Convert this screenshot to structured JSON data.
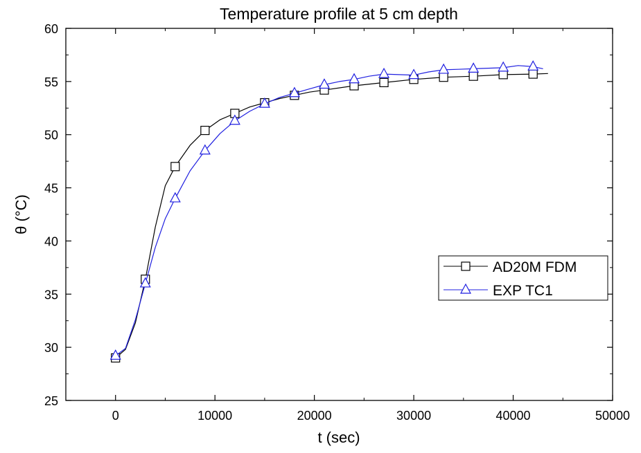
{
  "chart_data": {
    "type": "line",
    "title": "Temperature profile at 5 cm depth",
    "xlabel": "t (sec)",
    "ylabel": "θ (°C)",
    "xlim": [
      -5000,
      50000
    ],
    "ylim": [
      25,
      60
    ],
    "xticks": [
      0,
      10000,
      20000,
      30000,
      40000,
      50000
    ],
    "xtick_labels": [
      "0",
      "10000",
      "20000",
      "30000",
      "40000",
      "50000"
    ],
    "yticks": [
      25,
      30,
      35,
      40,
      45,
      50,
      55,
      60
    ],
    "ytick_labels": [
      "25",
      "30",
      "35",
      "40",
      "45",
      "50",
      "55",
      "60"
    ],
    "grid": false,
    "legend_position": "right",
    "series": [
      {
        "name": "AD20M FDM",
        "color": "#000000",
        "marker": "square",
        "x": [
          0,
          3000,
          6000,
          9000,
          12000,
          15000,
          18000,
          21000,
          24000,
          27000,
          30000,
          33000,
          36000,
          39000,
          42000
        ],
        "y": [
          29.0,
          36.4,
          47.0,
          50.4,
          52.0,
          53.0,
          53.7,
          54.2,
          54.6,
          54.9,
          55.2,
          55.4,
          55.5,
          55.65,
          55.7
        ],
        "line_x": [
          0,
          1000,
          2000,
          3000,
          4000,
          5000,
          6000,
          7500,
          9000,
          10500,
          12000,
          13500,
          15000,
          16500,
          18000,
          19500,
          21000,
          24000,
          27000,
          30000,
          33000,
          36000,
          39000,
          42000,
          43500
        ],
        "line_y": [
          29.0,
          29.8,
          32.3,
          36.4,
          41.3,
          45.2,
          47.0,
          49.0,
          50.4,
          51.4,
          52.0,
          52.6,
          53.0,
          53.4,
          53.7,
          54.0,
          54.2,
          54.6,
          54.9,
          55.2,
          55.4,
          55.5,
          55.65,
          55.7,
          55.75
        ]
      },
      {
        "name": "EXP TC1",
        "color": "#1f1fe0",
        "marker": "triangle",
        "x": [
          0,
          3000,
          6000,
          9000,
          12000,
          15000,
          18000,
          21000,
          24000,
          27000,
          30000,
          33000,
          36000,
          39000,
          42000
        ],
        "y": [
          29.2,
          36.0,
          44.0,
          48.5,
          51.3,
          52.9,
          53.9,
          54.7,
          55.2,
          55.7,
          55.6,
          56.1,
          56.2,
          56.3,
          56.4
        ],
        "line_x": [
          0,
          1000,
          2000,
          3000,
          4000,
          5000,
          6000,
          7500,
          9000,
          10500,
          12000,
          13500,
          15000,
          16500,
          18000,
          19500,
          21000,
          22500,
          24000,
          25500,
          27000,
          28500,
          30000,
          31500,
          33000,
          34500,
          36000,
          37500,
          39000,
          40500,
          42000,
          43000
        ],
        "line_y": [
          29.2,
          29.9,
          32.6,
          36.0,
          39.4,
          42.1,
          44.0,
          46.6,
          48.5,
          50.1,
          51.3,
          52.2,
          52.9,
          53.5,
          53.9,
          54.3,
          54.7,
          55.0,
          55.2,
          55.5,
          55.7,
          55.65,
          55.6,
          55.9,
          56.1,
          56.15,
          56.2,
          56.25,
          56.3,
          56.5,
          56.4,
          56.2
        ]
      }
    ]
  }
}
